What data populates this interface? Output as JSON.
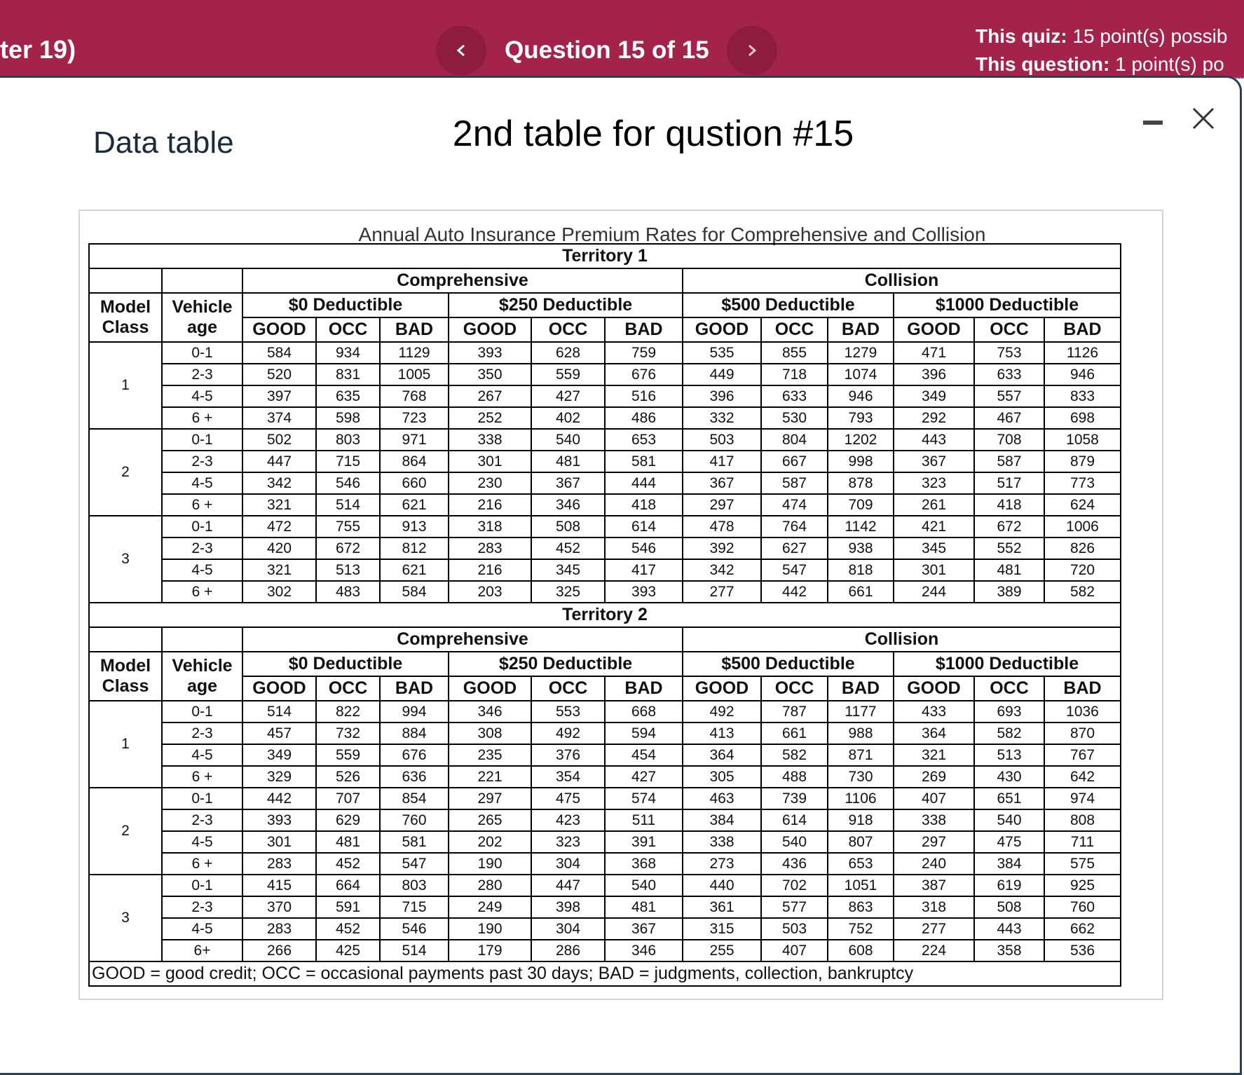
{
  "header": {
    "chapter": "ter 19)",
    "question": "Question 15 of 15",
    "quiz_label": "This quiz:",
    "quiz_value": "15 point(s) possib",
    "question_label": "This question:",
    "question_value": "1 point(s) po"
  },
  "dialog": {
    "title": "Data table",
    "heading": "2nd table for qustion #15"
  },
  "table": {
    "caption": "Annual Auto Insurance Premium Rates for Comprehensive and Collision",
    "columns": {
      "model_class": "Model Class",
      "vehicle_age": "Vehicle age",
      "groups": [
        {
          "name": "Comprehensive",
          "deductibles": [
            "$0 Deductible",
            "$250 Deductible"
          ]
        },
        {
          "name": "Collision",
          "deductibles": [
            "$500 Deductible",
            "$1000 Deductible"
          ]
        }
      ],
      "ratings": [
        "GOOD",
        "OCC",
        "BAD"
      ]
    },
    "territories": [
      {
        "name": "Territory 1",
        "classes": [
          {
            "label": "1",
            "rows": [
              {
                "age": "0-1",
                "values": [
                  584,
                  934,
                  1129,
                  393,
                  628,
                  759,
                  535,
                  855,
                  1279,
                  471,
                  753,
                  1126
                ]
              },
              {
                "age": "2-3",
                "values": [
                  520,
                  831,
                  1005,
                  350,
                  559,
                  676,
                  449,
                  718,
                  1074,
                  396,
                  633,
                  946
                ]
              },
              {
                "age": "4-5",
                "values": [
                  397,
                  635,
                  768,
                  267,
                  427,
                  516,
                  396,
                  633,
                  946,
                  349,
                  557,
                  833
                ]
              },
              {
                "age": "6 +",
                "values": [
                  374,
                  598,
                  723,
                  252,
                  402,
                  486,
                  332,
                  530,
                  793,
                  292,
                  467,
                  698
                ]
              }
            ]
          },
          {
            "label": "2",
            "rows": [
              {
                "age": "0-1",
                "values": [
                  502,
                  803,
                  971,
                  338,
                  540,
                  653,
                  503,
                  804,
                  1202,
                  443,
                  708,
                  1058
                ]
              },
              {
                "age": "2-3",
                "values": [
                  447,
                  715,
                  864,
                  301,
                  481,
                  581,
                  417,
                  667,
                  998,
                  367,
                  587,
                  879
                ]
              },
              {
                "age": "4-5",
                "values": [
                  342,
                  546,
                  660,
                  230,
                  367,
                  444,
                  367,
                  587,
                  878,
                  323,
                  517,
                  773
                ]
              },
              {
                "age": "6 +",
                "values": [
                  321,
                  514,
                  621,
                  216,
                  346,
                  418,
                  297,
                  474,
                  709,
                  261,
                  418,
                  624
                ]
              }
            ]
          },
          {
            "label": "3",
            "rows": [
              {
                "age": "0-1",
                "values": [
                  472,
                  755,
                  913,
                  318,
                  508,
                  614,
                  478,
                  764,
                  1142,
                  421,
                  672,
                  1006
                ]
              },
              {
                "age": "2-3",
                "values": [
                  420,
                  672,
                  812,
                  283,
                  452,
                  546,
                  392,
                  627,
                  938,
                  345,
                  552,
                  826
                ]
              },
              {
                "age": "4-5",
                "values": [
                  321,
                  513,
                  621,
                  216,
                  345,
                  417,
                  342,
                  547,
                  818,
                  301,
                  481,
                  720
                ]
              },
              {
                "age": "6 +",
                "values": [
                  302,
                  483,
                  584,
                  203,
                  325,
                  393,
                  277,
                  442,
                  661,
                  244,
                  389,
                  582
                ]
              }
            ]
          }
        ]
      },
      {
        "name": "Territory 2",
        "classes": [
          {
            "label": "1",
            "rows": [
              {
                "age": "0-1",
                "values": [
                  514,
                  822,
                  994,
                  346,
                  553,
                  668,
                  492,
                  787,
                  1177,
                  433,
                  693,
                  1036
                ]
              },
              {
                "age": "2-3",
                "values": [
                  457,
                  732,
                  884,
                  308,
                  492,
                  594,
                  413,
                  661,
                  988,
                  364,
                  582,
                  870
                ]
              },
              {
                "age": "4-5",
                "values": [
                  349,
                  559,
                  676,
                  235,
                  376,
                  454,
                  364,
                  582,
                  871,
                  321,
                  513,
                  767
                ]
              },
              {
                "age": "6 +",
                "values": [
                  329,
                  526,
                  636,
                  221,
                  354,
                  427,
                  305,
                  488,
                  730,
                  269,
                  430,
                  642
                ]
              }
            ]
          },
          {
            "label": "2",
            "rows": [
              {
                "age": "0-1",
                "values": [
                  442,
                  707,
                  854,
                  297,
                  475,
                  574,
                  463,
                  739,
                  1106,
                  407,
                  651,
                  974
                ]
              },
              {
                "age": "2-3",
                "values": [
                  393,
                  629,
                  760,
                  265,
                  423,
                  511,
                  384,
                  614,
                  918,
                  338,
                  540,
                  808
                ]
              },
              {
                "age": "4-5",
                "values": [
                  301,
                  481,
                  581,
                  202,
                  323,
                  391,
                  338,
                  540,
                  807,
                  297,
                  475,
                  711
                ]
              },
              {
                "age": "6 +",
                "values": [
                  283,
                  452,
                  547,
                  190,
                  304,
                  368,
                  273,
                  436,
                  653,
                  240,
                  384,
                  575
                ]
              }
            ]
          },
          {
            "label": "3",
            "rows": [
              {
                "age": "0-1",
                "values": [
                  415,
                  664,
                  803,
                  280,
                  447,
                  540,
                  440,
                  702,
                  1051,
                  387,
                  619,
                  925
                ]
              },
              {
                "age": "2-3",
                "values": [
                  370,
                  591,
                  715,
                  249,
                  398,
                  481,
                  361,
                  577,
                  863,
                  318,
                  508,
                  760
                ]
              },
              {
                "age": "4-5",
                "values": [
                  283,
                  452,
                  546,
                  190,
                  304,
                  367,
                  315,
                  503,
                  752,
                  277,
                  443,
                  662
                ]
              },
              {
                "age": "6+",
                "values": [
                  266,
                  425,
                  514,
                  179,
                  286,
                  346,
                  255,
                  407,
                  608,
                  224,
                  358,
                  536
                ]
              }
            ]
          }
        ]
      }
    ],
    "note": "GOOD = good credit; OCC = occasional payments past 30 days; BAD = judgments, collection, bankruptcy"
  }
}
